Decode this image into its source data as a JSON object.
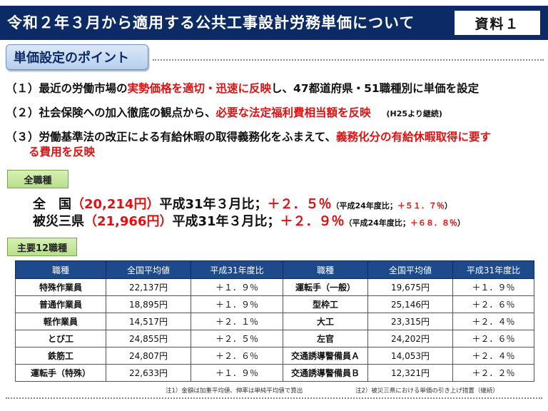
{
  "header": {
    "title": "令和２年３月から適用する公共工事設計労務単価について",
    "ref_label": "資料１"
  },
  "section": {
    "point_label": "単価設定のポイント"
  },
  "points": [
    {
      "prefix": "（１）最近の労働市場の",
      "highlight": "実勢価格を適切・迅速に反映",
      "suffix": "し、47都道府県・51職種別に単価を設定"
    },
    {
      "prefix": "（２）社会保険への加入徹底の観点から、",
      "highlight": "必要な法定福利費相当額を反映",
      "note": "(H25より継続)"
    },
    {
      "prefix": "（３）労働基準法の改正による有給休暇の取得義務化をふまえて、",
      "highlight_line1": "義務化分の有給休暇取得に要す",
      "highlight_line2": "る費用を反映"
    }
  ],
  "all_jobs": {
    "label": "全職種",
    "national": {
      "name": "全　国",
      "value": "（20,214円）",
      "comparison": "平成31年３月比；",
      "change": "＋２．５％",
      "note_prefix": "（平成24年度比；",
      "note_value": "＋５１．７％",
      "note_suffix": "）"
    },
    "disaster": {
      "name": "被災三県",
      "value": "（21,966円）",
      "comparison": "平成31年３月比；",
      "change": "＋２．９％",
      "note_prefix": "（平成24年度比；",
      "note_value": "＋６８．８％",
      "note_suffix": "）"
    }
  },
  "major": {
    "label": "主要12職種",
    "headers": [
      "職種",
      "全国平均値",
      "平成31年度比",
      "職種",
      "全国平均値",
      "平成31年度比"
    ],
    "rows": [
      [
        "特殊作業員",
        "22,137円",
        "＋１．９％",
        "運転手（一般）",
        "19,675円",
        "＋１．９％"
      ],
      [
        "普通作業員",
        "18,895円",
        "＋１．９％",
        "型枠工",
        "25,146円",
        "＋２．６％"
      ],
      [
        "軽作業員",
        "14,517円",
        "＋２．１％",
        "大工",
        "23,315円",
        "＋２．４％"
      ],
      [
        "とび工",
        "24,855円",
        "＋２．５％",
        "左官",
        "24,202円",
        "＋２．６％"
      ],
      [
        "鉄筋工",
        "24,807円",
        "＋２．６％",
        "交通誘導警備員Ａ",
        "14,053円",
        "＋２．４％"
      ],
      [
        "運転手（特殊）",
        "22,633円",
        "＋１．９％",
        "交通誘導警備員Ｂ",
        "12,321円",
        "＋２．２％"
      ]
    ]
  },
  "notes": {
    "note1": "注1）金額は加重平均値、伸率は単純平均値で算出",
    "note2": "注2）被災三県における単価の引き上げ措置（継続）"
  }
}
